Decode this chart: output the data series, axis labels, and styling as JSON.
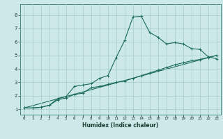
{
  "xlabel": "Humidex (Indice chaleur)",
  "xlim": [
    -0.5,
    23.5
  ],
  "ylim": [
    0.6,
    8.8
  ],
  "yticks": [
    1,
    2,
    3,
    4,
    5,
    6,
    7,
    8
  ],
  "xticks": [
    0,
    1,
    2,
    3,
    4,
    5,
    6,
    7,
    8,
    9,
    10,
    11,
    12,
    13,
    14,
    15,
    16,
    17,
    18,
    19,
    20,
    21,
    22,
    23
  ],
  "bg_color": "#cce8e8",
  "grid_color": "#aacfcf",
  "line_color": "#1a6b5a",
  "line1_x": [
    0,
    1,
    2,
    3,
    4,
    5,
    6,
    7,
    8,
    9,
    10,
    11,
    12,
    13,
    14,
    15,
    16,
    17,
    18,
    19,
    20,
    21,
    22,
    23
  ],
  "line1_y": [
    1.1,
    1.1,
    1.15,
    1.3,
    1.8,
    1.95,
    2.7,
    2.8,
    2.9,
    3.3,
    3.5,
    4.85,
    6.1,
    7.85,
    7.9,
    6.7,
    6.35,
    5.85,
    5.95,
    5.85,
    5.5,
    5.45,
    4.9,
    4.75
  ],
  "line2_x": [
    0,
    1,
    2,
    3,
    4,
    5,
    6,
    7,
    8,
    9,
    10,
    11,
    12,
    13,
    14,
    15,
    16,
    17,
    18,
    19,
    20,
    21,
    22,
    23
  ],
  "line2_y": [
    1.1,
    1.1,
    1.15,
    1.3,
    1.7,
    1.85,
    2.1,
    2.2,
    2.6,
    2.7,
    2.85,
    3.0,
    3.1,
    3.3,
    3.5,
    3.7,
    3.9,
    4.1,
    4.3,
    4.45,
    4.6,
    4.7,
    4.85,
    5.0
  ],
  "line3_x": [
    0,
    23
  ],
  "line3_y": [
    1.1,
    5.0
  ]
}
